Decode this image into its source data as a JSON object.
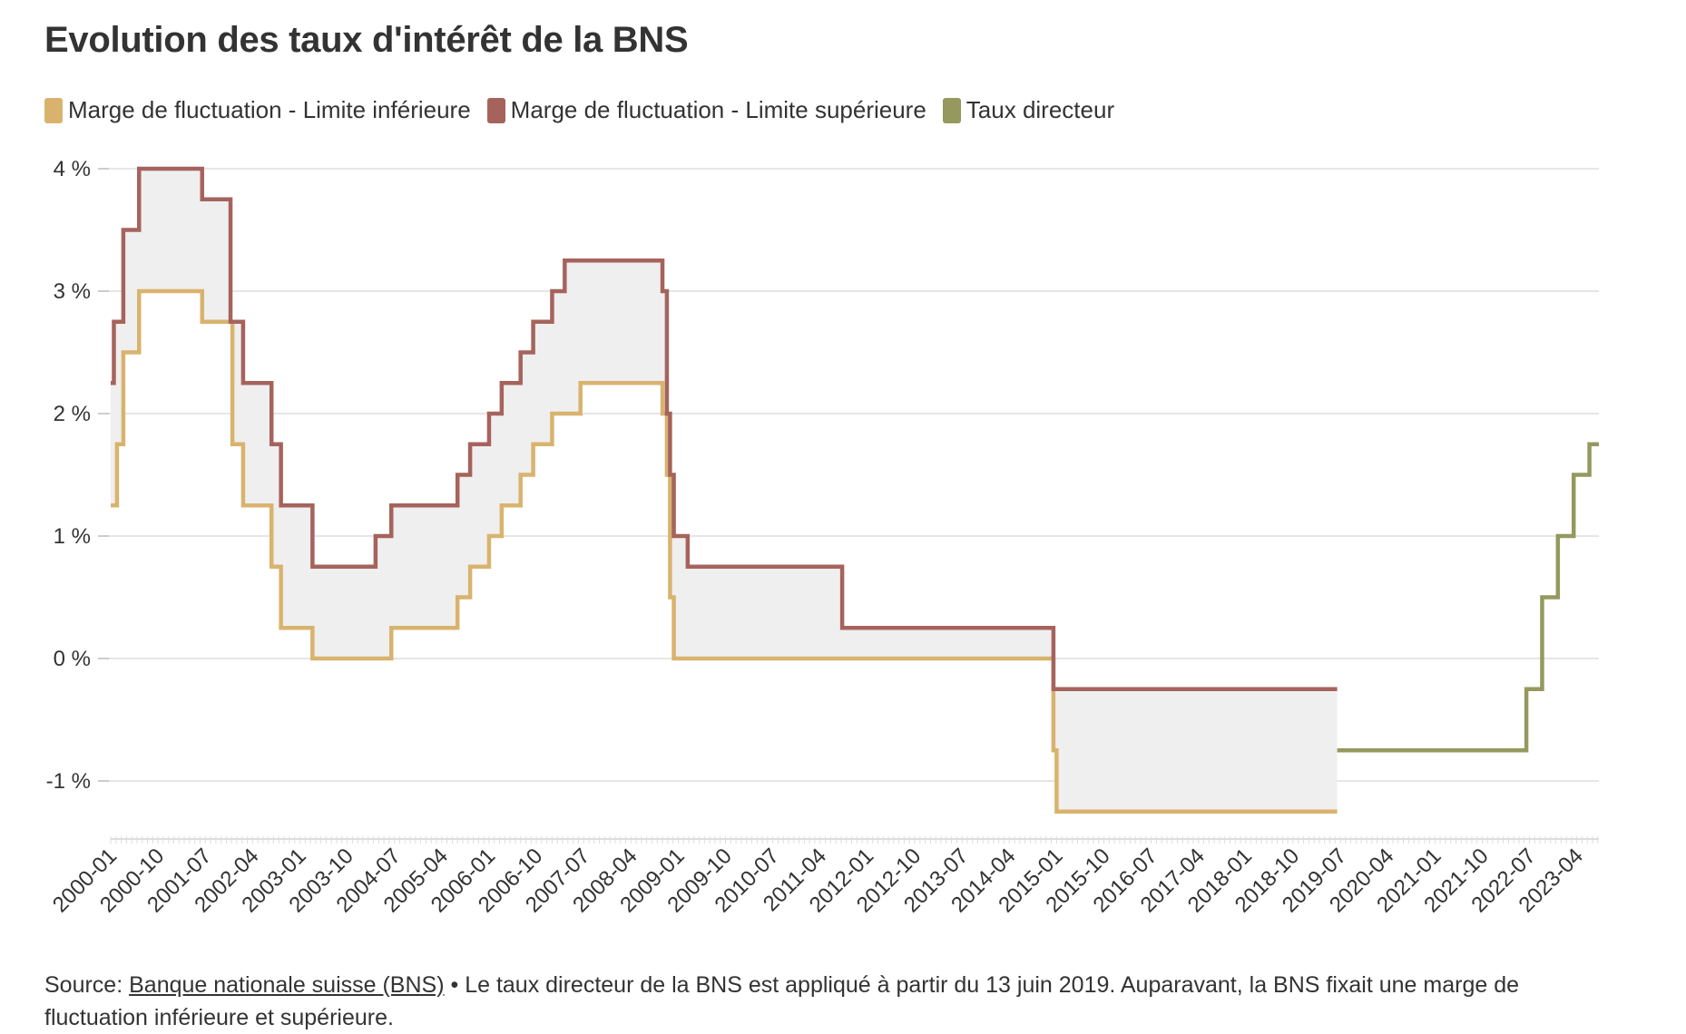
{
  "title": "Evolution des taux d'intérêt de la BNS",
  "legend": [
    {
      "label": "Marge de fluctuation - Limite inférieure",
      "color": "#d9b36e"
    },
    {
      "label": "Marge de fluctuation - Limite supérieure",
      "color": "#a6635c"
    },
    {
      "label": "Taux directeur",
      "color": "#95995e"
    }
  ],
  "source": {
    "prefix": "Source: ",
    "link_text": "Banque nationale suisse (BNS)",
    "note": " • Le taux directeur de la BNS est appliqué à partir du 13 juin 2019. Auparavant, la BNS fixait une marge de fluctuation inférieure et supérieure."
  },
  "chart_data": {
    "type": "line",
    "subtype": "step",
    "title": "Evolution des taux d'intérêt de la BNS",
    "xlabel": "",
    "ylabel": "",
    "x_range": [
      2000.0,
      2023.6
    ],
    "ylim": [
      -1.5,
      4
    ],
    "y_ticks": [
      4,
      3,
      2,
      1,
      0,
      -1
    ],
    "y_tick_labels": [
      "4 %",
      "3 %",
      "2 %",
      "1 %",
      "0 %",
      "-1 %"
    ],
    "x_tick_labels": [
      "2000-01",
      "2000-10",
      "2001-07",
      "2002-04",
      "2003-01",
      "2003-10",
      "2004-07",
      "2005-04",
      "2006-01",
      "2006-10",
      "2007-07",
      "2008-04",
      "2009-01",
      "2009-10",
      "2010-07",
      "2011-04",
      "2012-01",
      "2012-10",
      "2013-07",
      "2014-04",
      "2015-01",
      "2015-10",
      "2016-07",
      "2017-04",
      "2018-01",
      "2018-10",
      "2019-07",
      "2020-04",
      "2021-01",
      "2021-10",
      "2022-07",
      "2023-04"
    ],
    "grid": true,
    "fill_between": "band between lower and upper limits",
    "band_fill_color": "#efefef",
    "series": [
      {
        "name": "Marge de fluctuation - Limite inférieure",
        "color": "#d9b36e",
        "x": [
          2000.0,
          2000.1,
          2000.2,
          2000.45,
          2001.45,
          2001.9,
          2001.93,
          2002.1,
          2002.55,
          2002.7,
          2003.2,
          2004.45,
          2005.5,
          2005.7,
          2006.0,
          2006.2,
          2006.5,
          2006.7,
          2007.0,
          2007.45,
          2008.75,
          2008.82,
          2008.87,
          2008.93,
          2014.95,
          2015.0,
          2019.45
        ],
        "y": [
          1.25,
          1.75,
          2.5,
          3.0,
          2.75,
          2.75,
          1.75,
          1.25,
          0.75,
          0.25,
          0.0,
          0.25,
          0.5,
          0.75,
          1.0,
          1.25,
          1.5,
          1.75,
          2.0,
          2.25,
          2.0,
          1.5,
          0.5,
          0.0,
          -0.75,
          -1.25,
          -1.25
        ]
      },
      {
        "name": "Marge de fluctuation - Limite supérieure",
        "color": "#a6635c",
        "x": [
          2000.0,
          2000.05,
          2000.2,
          2000.45,
          2001.45,
          2001.9,
          2002.1,
          2002.55,
          2002.7,
          2003.2,
          2004.2,
          2004.45,
          2005.5,
          2005.7,
          2006.0,
          2006.2,
          2006.5,
          2006.7,
          2007.0,
          2007.2,
          2007.45,
          2008.75,
          2008.82,
          2008.87,
          2008.93,
          2009.15,
          2011.6,
          2014.95,
          2019.45
        ],
        "y": [
          2.25,
          2.75,
          3.5,
          4.0,
          3.75,
          2.75,
          2.25,
          1.75,
          1.25,
          0.75,
          1.0,
          1.25,
          1.5,
          1.75,
          2.0,
          2.25,
          2.5,
          2.75,
          3.0,
          3.25,
          3.25,
          3.0,
          2.0,
          1.5,
          1.0,
          0.75,
          0.25,
          -0.25,
          -0.25
        ]
      },
      {
        "name": "Taux directeur",
        "color": "#95995e",
        "x": [
          2019.45,
          2022.45,
          2022.7,
          2022.95,
          2023.2,
          2023.45,
          2023.6
        ],
        "y": [
          -0.75,
          -0.25,
          0.5,
          1.0,
          1.5,
          1.75,
          1.75
        ]
      }
    ]
  }
}
